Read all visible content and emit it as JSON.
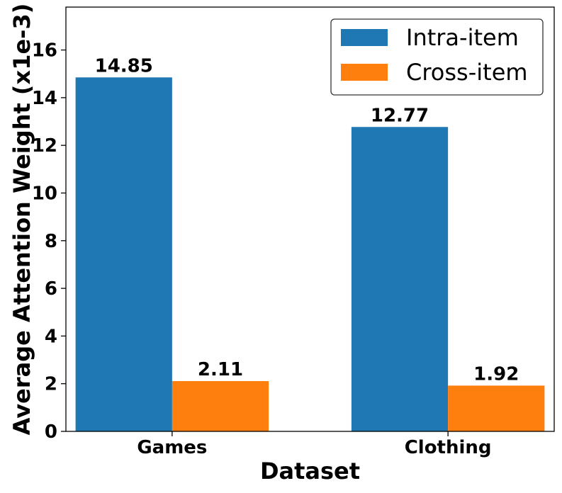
{
  "chart_data": {
    "type": "bar",
    "categories": [
      "Games",
      "Clothing"
    ],
    "series": [
      {
        "name": "Intra-item",
        "values": [
          14.85,
          12.77
        ],
        "labels": [
          "14.85",
          "12.77"
        ],
        "color": "#1f77b4"
      },
      {
        "name": "Cross-item",
        "values": [
          2.11,
          1.92
        ],
        "labels": [
          "2.11",
          "1.92"
        ],
        "color": "#ff7f0e"
      }
    ],
    "xlabel": "Dataset",
    "ylabel": "Average Attention Weight (x1e-3)",
    "ylim": [
      0,
      17.8
    ],
    "yticks": [
      0,
      2,
      4,
      6,
      8,
      10,
      12,
      14,
      16
    ],
    "ytick_labels": [
      "0",
      "2",
      "4",
      "6",
      "8",
      "10",
      "12",
      "14",
      "16"
    ],
    "legend_position": "top-right",
    "grid": false
  }
}
